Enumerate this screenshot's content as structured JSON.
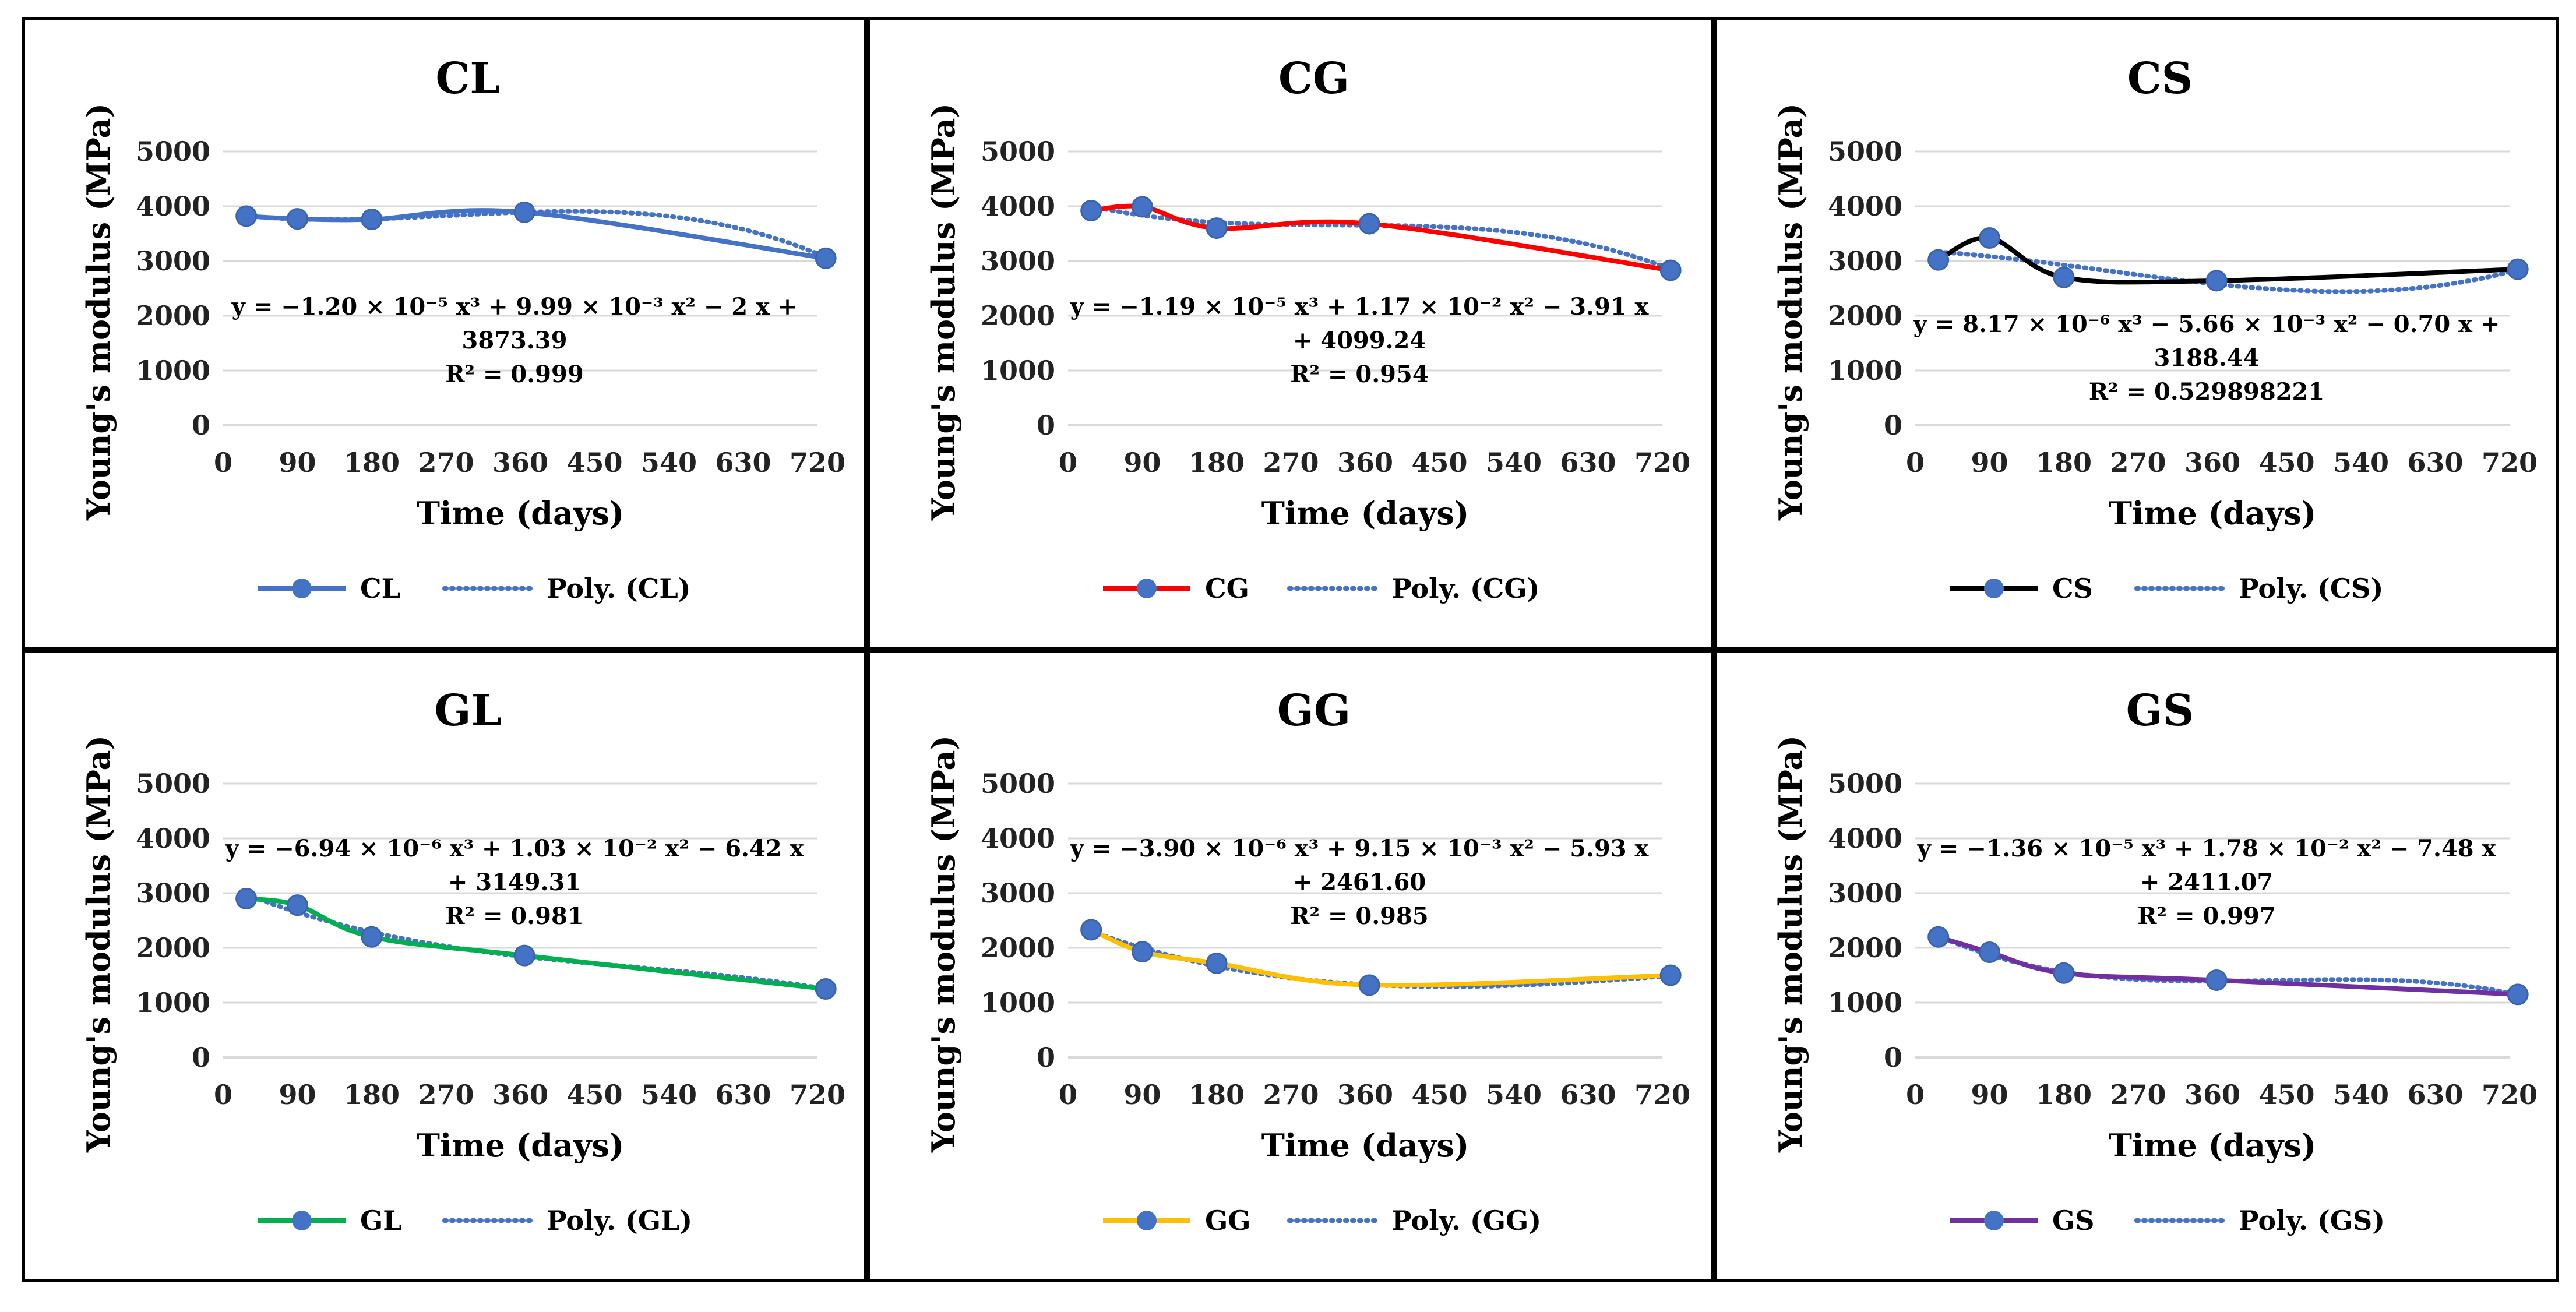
{
  "chart_data": [
    {
      "type": "line",
      "title": "CL",
      "xlabel": "Time (days)",
      "ylabel": "Young's modulus (MPa)",
      "xlim": [
        0,
        720
      ],
      "ylim": [
        0,
        5000
      ],
      "xticks": [
        0,
        90,
        180,
        270,
        360,
        450,
        540,
        630,
        720
      ],
      "yticks": [
        0,
        1000,
        2000,
        3000,
        4000,
        5000
      ],
      "series": [
        {
          "name": "CL",
          "color": "#4472c4",
          "x": [
            28,
            90,
            180,
            365,
            730
          ],
          "y": [
            3820,
            3770,
            3760,
            3890,
            3050
          ]
        }
      ],
      "trendline": {
        "name": "Poly. (CL)",
        "color": "#4472c4",
        "coefficients": [
          -1.2e-05,
          0.00999,
          -2,
          3873.39
        ]
      },
      "equation": {
        "line1": "y = −1.20 × 10⁻⁵ x³ + 9.99 × 10⁻³ x² − 2 x +",
        "line2": "3873.39",
        "line3": "R² = 0.999"
      },
      "legend": [
        "CL",
        "Poly. (CL)"
      ]
    },
    {
      "type": "line",
      "title": "CG",
      "xlabel": "Time (days)",
      "ylabel": "Young's modulus (MPa)",
      "xlim": [
        0,
        720
      ],
      "ylim": [
        0,
        5000
      ],
      "xticks": [
        0,
        90,
        180,
        270,
        360,
        450,
        540,
        630,
        720
      ],
      "yticks": [
        0,
        1000,
        2000,
        3000,
        4000,
        5000
      ],
      "series": [
        {
          "name": "CG",
          "color": "#ff0000",
          "x": [
            28,
            90,
            180,
            365,
            730
          ],
          "y": [
            3920,
            3990,
            3600,
            3680,
            2830
          ]
        }
      ],
      "trendline": {
        "name": "Poly. (CG)",
        "color": "#4472c4",
        "coefficients": [
          -1.19e-05,
          0.0117,
          -3.91,
          4099.24
        ]
      },
      "equation": {
        "line1": "y = −1.19 × 10⁻⁵ x³ + 1.17 × 10⁻² x² − 3.91 x",
        "line2": "+ 4099.24",
        "line3": "R² = 0.954"
      },
      "legend": [
        "CG",
        "Poly. (CG)"
      ]
    },
    {
      "type": "line",
      "title": "CS",
      "xlabel": "Time (days)",
      "ylabel": "Young's modulus (MPa)",
      "xlim": [
        0,
        720
      ],
      "ylim": [
        0,
        5000
      ],
      "xticks": [
        0,
        90,
        180,
        270,
        360,
        450,
        540,
        630,
        720
      ],
      "yticks": [
        0,
        1000,
        2000,
        3000,
        4000,
        5000
      ],
      "series": [
        {
          "name": "CS",
          "color": "#000000",
          "x": [
            28,
            90,
            180,
            365,
            730
          ],
          "y": [
            3020,
            3420,
            2700,
            2640,
            2850
          ]
        }
      ],
      "trendline": {
        "name": "Poly. (CS)",
        "color": "#4472c4",
        "coefficients": [
          8.17e-06,
          -0.00566,
          -0.7,
          3188.44
        ]
      },
      "equation": {
        "line1": "y = 8.17 × 10⁻⁶ x³ − 5.66 × 10⁻³ x² − 0.70 x +",
        "line2": "3188.44",
        "line3": "R² = 0.529898221"
      },
      "legend": [
        "CS",
        "Poly. (CS)"
      ]
    },
    {
      "type": "line",
      "title": "GL",
      "xlabel": "Time (days)",
      "ylabel": "Young's modulus (MPa)",
      "xlim": [
        0,
        720
      ],
      "ylim": [
        0,
        5000
      ],
      "xticks": [
        0,
        90,
        180,
        270,
        360,
        450,
        540,
        630,
        720
      ],
      "yticks": [
        0,
        1000,
        2000,
        3000,
        4000,
        5000
      ],
      "series": [
        {
          "name": "GL",
          "color": "#00b050",
          "x": [
            28,
            90,
            180,
            365,
            730
          ],
          "y": [
            2900,
            2780,
            2200,
            1860,
            1250
          ]
        }
      ],
      "trendline": {
        "name": "Poly. (GL)",
        "color": "#4472c4",
        "coefficients": [
          -6.94e-06,
          0.0103,
          -6.42,
          3149.31
        ]
      },
      "equation": {
        "line1": "y = −6.94 × 10⁻⁶ x³ + 1.03 × 10⁻² x² − 6.42 x",
        "line2": "+ 3149.31",
        "line3": "R² = 0.981"
      },
      "legend": [
        "GL",
        "Poly. (GL)"
      ]
    },
    {
      "type": "line",
      "title": "GG",
      "xlabel": "Time (days)",
      "ylabel": "Young's modulus (MPa)",
      "xlim": [
        0,
        720
      ],
      "ylim": [
        0,
        5000
      ],
      "xticks": [
        0,
        90,
        180,
        270,
        360,
        450,
        540,
        630,
        720
      ],
      "yticks": [
        0,
        1000,
        2000,
        3000,
        4000,
        5000
      ],
      "series": [
        {
          "name": "GG",
          "color": "#ffc000",
          "x": [
            28,
            90,
            180,
            365,
            730
          ],
          "y": [
            2330,
            1930,
            1720,
            1320,
            1500
          ]
        }
      ],
      "trendline": {
        "name": "Poly. (GG)",
        "color": "#4472c4",
        "coefficients": [
          -3.9e-06,
          0.00915,
          -5.93,
          2461.6
        ]
      },
      "equation": {
        "line1": "y = −3.90 × 10⁻⁶ x³ + 9.15 × 10⁻³ x² − 5.93 x",
        "line2": "+ 2461.60",
        "line3": "R² = 0.985"
      },
      "legend": [
        "GG",
        "Poly. (GG)"
      ]
    },
    {
      "type": "line",
      "title": "GS",
      "xlabel": "Time (days)",
      "ylabel": "Young's modulus (MPa)",
      "xlim": [
        0,
        720
      ],
      "ylim": [
        0,
        5000
      ],
      "xticks": [
        0,
        90,
        180,
        270,
        360,
        450,
        540,
        630,
        720
      ],
      "yticks": [
        0,
        1000,
        2000,
        3000,
        4000,
        5000
      ],
      "series": [
        {
          "name": "GS",
          "color": "#7030a0",
          "x": [
            28,
            90,
            180,
            365,
            730
          ],
          "y": [
            2200,
            1920,
            1540,
            1410,
            1150
          ]
        }
      ],
      "trendline": {
        "name": "Poly. (GS)",
        "color": "#4472c4",
        "coefficients": [
          -1.36e-05,
          0.0178,
          -7.48,
          2411.07
        ]
      },
      "equation": {
        "line1": "y = −1.36 × 10⁻⁵ x³ + 1.78 × 10⁻² x² − 7.48 x",
        "line2": "+ 2411.07",
        "line3": "R² = 0.997"
      },
      "legend": [
        "GS",
        "Poly. (GS)"
      ]
    }
  ],
  "marker_color": "#4472c4"
}
